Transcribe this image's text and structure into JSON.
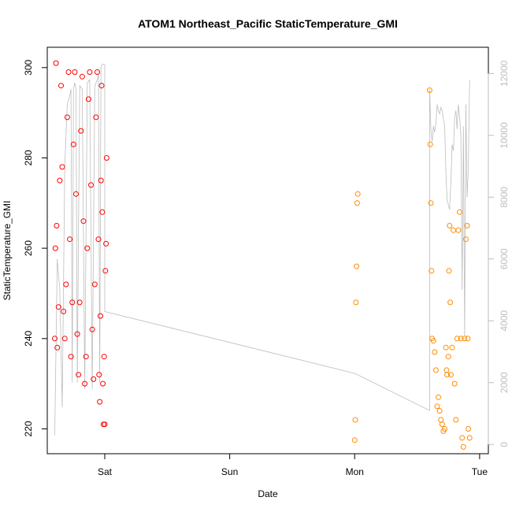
{
  "chart_data": {
    "type": "scatter",
    "title": "ATOM1 Northeast_Pacific StaticTemperature_GMI",
    "xlabel": "Date",
    "ylabel": "StaticTemperature_GMI",
    "xlim": [
      -0.46,
      3.07
    ],
    "ylim": [
      214.5,
      304.5
    ],
    "y2lim": [
      -300,
      12850
    ],
    "x_ticks": [
      {
        "value": 0,
        "label": "Sat"
      },
      {
        "value": 1,
        "label": "Sun"
      },
      {
        "value": 2,
        "label": "Mon"
      },
      {
        "value": 3,
        "label": "Tue"
      }
    ],
    "y_ticks": [
      220,
      240,
      260,
      280,
      300
    ],
    "y2_ticks": [
      0,
      2000,
      4000,
      6000,
      8000,
      10000,
      12000
    ],
    "grid": false,
    "colors": {
      "series_red": "#ff0000",
      "series_orange": "#ff8c00",
      "secondary_line": "#bdbdbd",
      "axis": "#000000",
      "right_axis": "#bdbdbd"
    },
    "series": [
      {
        "color": "#ff0000",
        "marker": "open-circle",
        "points": [
          [
            -0.4,
            240
          ],
          [
            -0.395,
            260
          ],
          [
            -0.39,
            301
          ],
          [
            -0.385,
            265
          ],
          [
            -0.38,
            238
          ],
          [
            -0.37,
            247
          ],
          [
            -0.36,
            275
          ],
          [
            -0.35,
            296
          ],
          [
            -0.34,
            278
          ],
          [
            -0.33,
            246
          ],
          [
            -0.32,
            240
          ],
          [
            -0.31,
            252
          ],
          [
            -0.3,
            289
          ],
          [
            -0.29,
            299
          ],
          [
            -0.28,
            262
          ],
          [
            -0.27,
            236
          ],
          [
            -0.26,
            248
          ],
          [
            -0.25,
            283
          ],
          [
            -0.24,
            299
          ],
          [
            -0.23,
            272
          ],
          [
            -0.22,
            241
          ],
          [
            -0.21,
            232
          ],
          [
            -0.2,
            248
          ],
          [
            -0.19,
            286
          ],
          [
            -0.18,
            298
          ],
          [
            -0.17,
            266
          ],
          [
            -0.16,
            230
          ],
          [
            -0.15,
            236
          ],
          [
            -0.14,
            260
          ],
          [
            -0.13,
            293
          ],
          [
            -0.12,
            299
          ],
          [
            -0.11,
            274
          ],
          [
            -0.1,
            242
          ],
          [
            -0.09,
            231
          ],
          [
            -0.08,
            252
          ],
          [
            -0.07,
            289
          ],
          [
            -0.06,
            299
          ],
          [
            -0.05,
            262
          ],
          [
            -0.045,
            232
          ],
          [
            -0.04,
            226
          ],
          [
            -0.035,
            245
          ],
          [
            -0.03,
            275
          ],
          [
            -0.025,
            296
          ],
          [
            -0.02,
            268
          ],
          [
            -0.015,
            230
          ],
          [
            -0.01,
            221
          ],
          [
            -0.005,
            236
          ],
          [
            0.0,
            221
          ],
          [
            0.005,
            255
          ],
          [
            0.01,
            261
          ],
          [
            0.015,
            280
          ]
        ]
      },
      {
        "color": "#ff8c00",
        "marker": "open-circle",
        "points": [
          [
            2.0,
            217.5
          ],
          [
            2.005,
            222
          ],
          [
            2.01,
            248
          ],
          [
            2.015,
            256
          ],
          [
            2.02,
            270
          ],
          [
            2.025,
            272
          ],
          [
            2.6,
            295
          ],
          [
            2.605,
            283
          ],
          [
            2.61,
            270
          ],
          [
            2.615,
            255
          ],
          [
            2.62,
            240
          ],
          [
            2.63,
            239.5
          ],
          [
            2.64,
            237
          ],
          [
            2.65,
            233
          ],
          [
            2.66,
            225
          ],
          [
            2.67,
            227
          ],
          [
            2.68,
            224
          ],
          [
            2.69,
            222
          ],
          [
            2.7,
            221
          ],
          [
            2.71,
            219.5
          ],
          [
            2.72,
            220
          ],
          [
            2.73,
            238
          ],
          [
            2.735,
            233
          ],
          [
            2.74,
            232
          ],
          [
            2.75,
            236
          ],
          [
            2.755,
            255
          ],
          [
            2.76,
            265
          ],
          [
            2.765,
            248
          ],
          [
            2.77,
            232
          ],
          [
            2.78,
            238
          ],
          [
            2.79,
            264
          ],
          [
            2.8,
            230
          ],
          [
            2.81,
            222
          ],
          [
            2.82,
            240
          ],
          [
            2.83,
            264
          ],
          [
            2.84,
            268
          ],
          [
            2.85,
            240
          ],
          [
            2.86,
            218
          ],
          [
            2.87,
            216
          ],
          [
            2.88,
            240
          ],
          [
            2.89,
            262
          ],
          [
            2.9,
            265
          ],
          [
            2.905,
            240
          ],
          [
            2.91,
            220
          ],
          [
            2.92,
            218
          ]
        ]
      }
    ],
    "secondary_line": {
      "color": "#bdbdbd",
      "points": [
        [
          -0.4,
          300
        ],
        [
          -0.38,
          6000
        ],
        [
          -0.36,
          5000
        ],
        [
          -0.34,
          1200
        ],
        [
          -0.32,
          9000
        ],
        [
          -0.3,
          11000
        ],
        [
          -0.28,
          11300
        ],
        [
          -0.27,
          11500
        ],
        [
          -0.26,
          2000
        ],
        [
          -0.25,
          11500
        ],
        [
          -0.24,
          11700
        ],
        [
          -0.23,
          11500
        ],
        [
          -0.22,
          2000
        ],
        [
          -0.2,
          11600
        ],
        [
          -0.18,
          11500
        ],
        [
          -0.16,
          1800
        ],
        [
          -0.14,
          11700
        ],
        [
          -0.12,
          11800
        ],
        [
          -0.1,
          1800
        ],
        [
          -0.08,
          11600
        ],
        [
          -0.06,
          11800
        ],
        [
          -0.05,
          12000
        ],
        [
          -0.04,
          2000
        ],
        [
          -0.03,
          12200
        ],
        [
          -0.02,
          12300
        ],
        [
          0.0,
          12300
        ],
        [
          0.0,
          4300
        ],
        [
          1.0,
          3300
        ],
        [
          2.0,
          2300
        ],
        [
          2.6,
          1100
        ],
        [
          2.6,
          11500
        ],
        [
          2.61,
          10200
        ],
        [
          2.62,
          9800
        ],
        [
          2.63,
          10300
        ],
        [
          2.64,
          10100
        ],
        [
          2.65,
          10400
        ],
        [
          2.66,
          11000
        ],
        [
          2.67,
          10800
        ],
        [
          2.68,
          10700
        ],
        [
          2.69,
          10900
        ],
        [
          2.7,
          10800
        ],
        [
          2.72,
          10300
        ],
        [
          2.73,
          8800
        ],
        [
          2.74,
          7900
        ],
        [
          2.76,
          7600
        ],
        [
          2.77,
          8500
        ],
        [
          2.78,
          9700
        ],
        [
          2.79,
          9500
        ],
        [
          2.8,
          10600
        ],
        [
          2.81,
          10800
        ],
        [
          2.82,
          10200
        ],
        [
          2.83,
          11000
        ],
        [
          2.84,
          10600
        ],
        [
          2.85,
          10000
        ],
        [
          2.86,
          5000
        ],
        [
          2.87,
          10300
        ],
        [
          2.88,
          3500
        ],
        [
          2.89,
          11000
        ],
        [
          2.9,
          8000
        ],
        [
          2.91,
          9000
        ],
        [
          2.92,
          11800
        ]
      ]
    }
  }
}
